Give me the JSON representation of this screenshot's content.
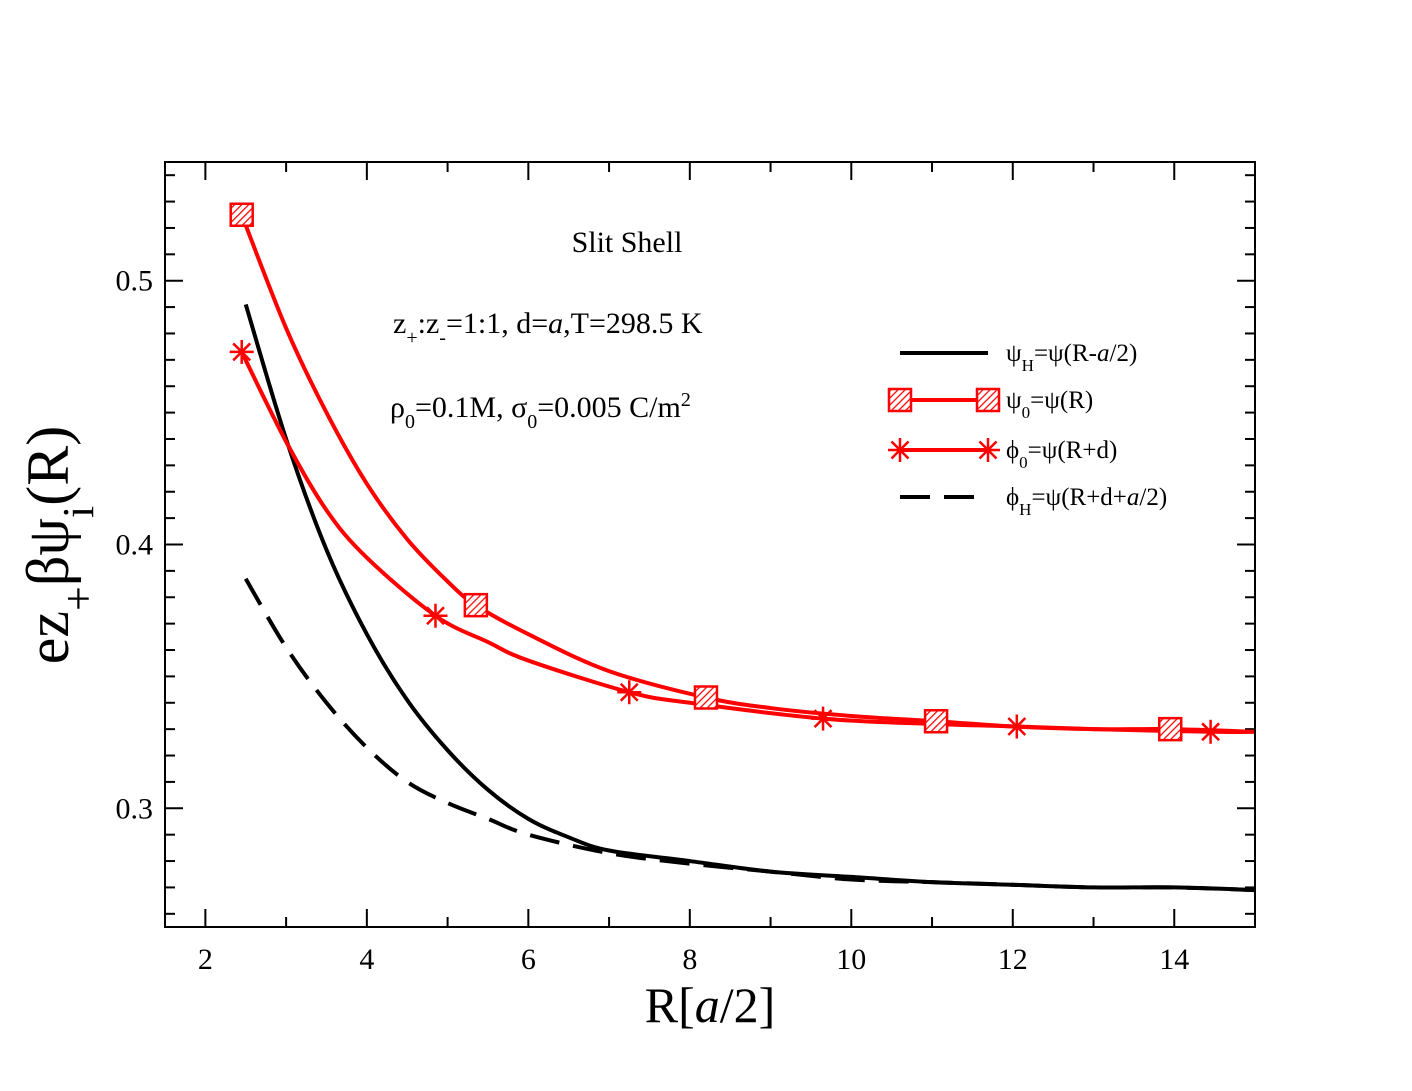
{
  "chart_data": {
    "type": "line",
    "title": "",
    "xlabel": "R[a/2]",
    "ylabel": "ez+βψi(R)",
    "xlim": [
      1.5,
      15
    ],
    "ylim": [
      0.255,
      0.545
    ],
    "x_major_ticks": [
      2,
      4,
      6,
      8,
      10,
      12,
      14
    ],
    "x_tick_labels": [
      "2",
      "4",
      "6",
      "8",
      "10",
      "12",
      "14"
    ],
    "y_major_ticks": [
      0.3,
      0.4,
      0.5
    ],
    "y_tick_labels": [
      "0.3",
      "0.4",
      "0.5"
    ],
    "grid": false,
    "legend_position": "right",
    "annotations": {
      "slit_shell": "Slit Shell",
      "params1": "z+:z-=1:1, d=a,T=298.5 K",
      "params2": "ρ0=0.1M, σ0=0.005 C/m2"
    },
    "legend": [
      {
        "label": "ψH=ψ(R-a/2)"
      },
      {
        "label": "ψ0=ψ(R)"
      },
      {
        "label": "ϕ0=ψ(R+d)"
      },
      {
        "label": "ϕH=ψ(R+d+a/2)"
      }
    ],
    "series": [
      {
        "key": "psiH",
        "color": "#000000",
        "style": "solid",
        "marker": "none",
        "x": [
          2.5,
          3.0,
          3.5,
          4.0,
          4.5,
          5.0,
          5.5,
          6.0,
          6.5,
          7.0,
          8.0,
          9.0,
          10.0,
          11.0,
          12.0,
          13.0,
          14.0,
          15.0
        ],
        "y": [
          0.491,
          0.44,
          0.398,
          0.366,
          0.341,
          0.322,
          0.307,
          0.296,
          0.289,
          0.284,
          0.28,
          0.276,
          0.274,
          0.272,
          0.271,
          0.27,
          0.27,
          0.269
        ]
      },
      {
        "key": "psi0",
        "color": "#ff0000",
        "style": "solid",
        "marker": "hatched-square",
        "x": [
          2.45,
          3.0,
          3.5,
          4.0,
          4.5,
          5.0,
          5.35,
          6.0,
          7.0,
          8.2,
          9.0,
          10.0,
          11.05,
          12.0,
          13.0,
          13.95,
          15.0
        ],
        "y": [
          0.525,
          0.482,
          0.45,
          0.423,
          0.402,
          0.386,
          0.377,
          0.366,
          0.352,
          0.342,
          0.338,
          0.335,
          0.333,
          0.331,
          0.33,
          0.33,
          0.329
        ]
      },
      {
        "key": "phi0",
        "color": "#ff0000",
        "style": "solid",
        "marker": "asterisk",
        "x": [
          2.45,
          3.0,
          3.5,
          4.0,
          4.85,
          5.5,
          6.0,
          7.25,
          8.0,
          9.65,
          11.0,
          12.05,
          13.0,
          14.45,
          15.0
        ],
        "y": [
          0.473,
          0.439,
          0.413,
          0.395,
          0.373,
          0.363,
          0.356,
          0.344,
          0.34,
          0.334,
          0.332,
          0.331,
          0.33,
          0.329,
          0.329
        ]
      },
      {
        "key": "phiH",
        "color": "#000000",
        "style": "dashed",
        "marker": "none",
        "x": [
          2.5,
          3.0,
          3.5,
          4.0,
          4.5,
          5.0,
          5.5,
          6.0,
          7.0,
          8.0,
          9.0,
          10.0,
          11.0,
          12.0,
          13.0,
          14.0,
          15.0
        ],
        "y": [
          0.387,
          0.361,
          0.34,
          0.323,
          0.31,
          0.302,
          0.296,
          0.29,
          0.283,
          0.279,
          0.276,
          0.273,
          0.272,
          0.271,
          0.27,
          0.27,
          0.269
        ]
      }
    ]
  }
}
